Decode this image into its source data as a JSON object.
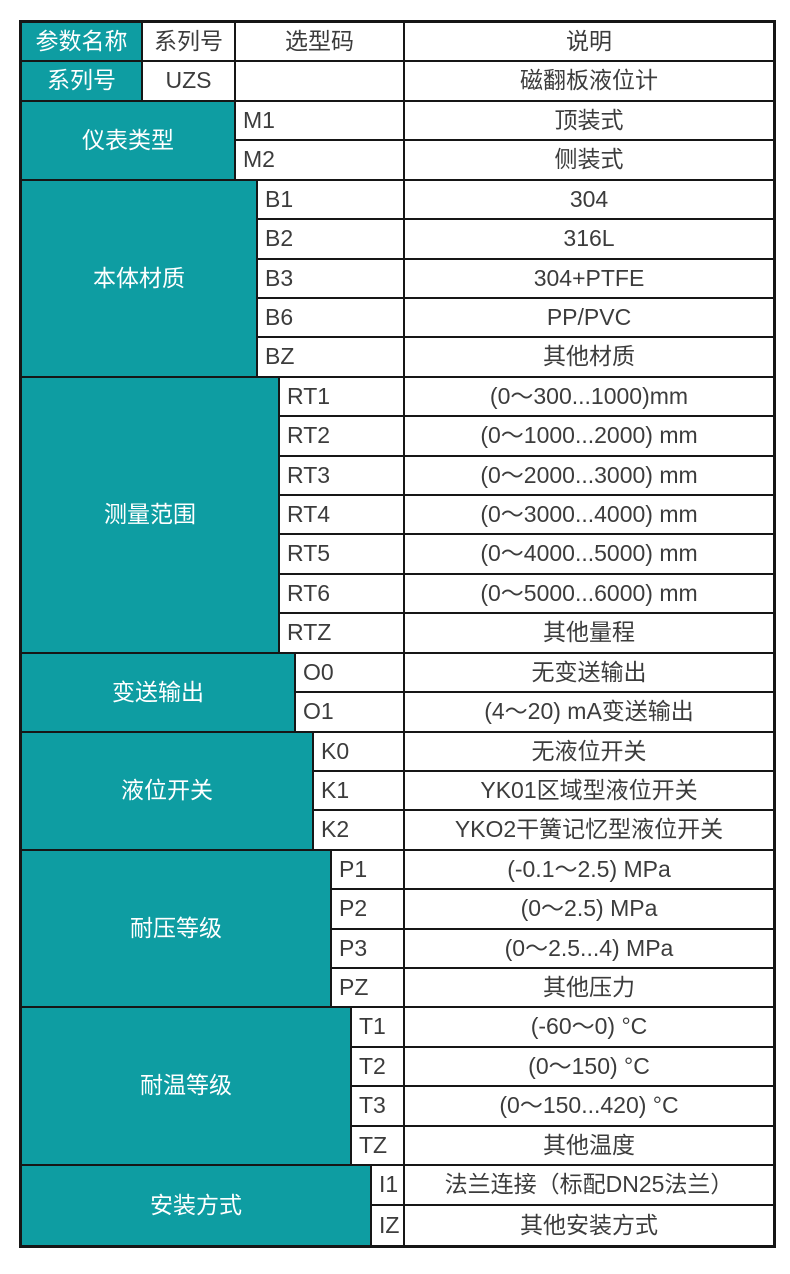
{
  "table": {
    "title_semantic": "UZS磁翻板液位计选型表",
    "header": {
      "param_name": "参数名称",
      "series_no": "系列号",
      "code": "选型码",
      "description": "说明"
    },
    "series_row": {
      "label": "系列号",
      "code": "UZS",
      "blank": "",
      "description": "磁翻板液位计"
    },
    "sections": [
      {
        "label": "仪表类型",
        "rows": [
          {
            "code": "M1",
            "desc": "顶装式"
          },
          {
            "code": "M2",
            "desc": "侧装式"
          }
        ]
      },
      {
        "label": "本体材质",
        "rows": [
          {
            "code": "B1",
            "desc": "304"
          },
          {
            "code": "B2",
            "desc": "316L"
          },
          {
            "code": "B3",
            "desc": "304+PTFE"
          },
          {
            "code": "B6",
            "desc": "PP/PVC"
          },
          {
            "code": "BZ",
            "desc": "其他材质"
          }
        ]
      },
      {
        "label": "测量范围",
        "rows": [
          {
            "code": "RT1",
            "desc": "(0～300...1000)mm"
          },
          {
            "code": "RT2",
            "desc": "(0～1000...2000) mm"
          },
          {
            "code": "RT3",
            "desc": "(0～2000...3000) mm"
          },
          {
            "code": "RT4",
            "desc": "(0～3000...4000) mm"
          },
          {
            "code": "RT5",
            "desc": "(0～4000...5000) mm"
          },
          {
            "code": "RT6",
            "desc": "(0～5000...6000) mm"
          },
          {
            "code": "RTZ",
            "desc": "其他量程"
          }
        ]
      },
      {
        "label": "变送输出",
        "rows": [
          {
            "code": "O0",
            "desc": "无变送输出"
          },
          {
            "code": "O1",
            "desc": "(4～20) mA变送输出"
          }
        ]
      },
      {
        "label": "液位开关",
        "rows": [
          {
            "code": "K0",
            "desc": "无液位开关"
          },
          {
            "code": "K1",
            "desc": "YK01区域型液位开关"
          },
          {
            "code": "K2",
            "desc": "YKO2干簧记忆型液位开关"
          }
        ]
      },
      {
        "label": "耐压等级",
        "rows": [
          {
            "code": "P1",
            "desc": "(-0.1～2.5) MPa"
          },
          {
            "code": "P2",
            "desc": "(0～2.5) MPa"
          },
          {
            "code": "P3",
            "desc": "(0～2.5...4) MPa"
          },
          {
            "code": "PZ",
            "desc": "其他压力"
          }
        ]
      },
      {
        "label": "耐温等级",
        "rows": [
          {
            "code": "T1",
            "desc": "(-60～0) °C"
          },
          {
            "code": "T2",
            "desc": "(0～150) °C"
          },
          {
            "code": "T3",
            "desc": "(0～150...420) °C"
          },
          {
            "code": "TZ",
            "desc": "其他温度"
          }
        ]
      },
      {
        "label": "安装方式",
        "rows": [
          {
            "code": "I1",
            "desc": "法兰连接（标配DN25法兰）"
          },
          {
            "code": "IZ",
            "desc": "其他安装方式"
          }
        ]
      }
    ]
  },
  "colors": {
    "teal": "#0E9DA2",
    "border": "#161616",
    "text_dark": "#3C3C3C",
    "text_light": "#FFFFFF",
    "background": "#FFFFFF"
  }
}
